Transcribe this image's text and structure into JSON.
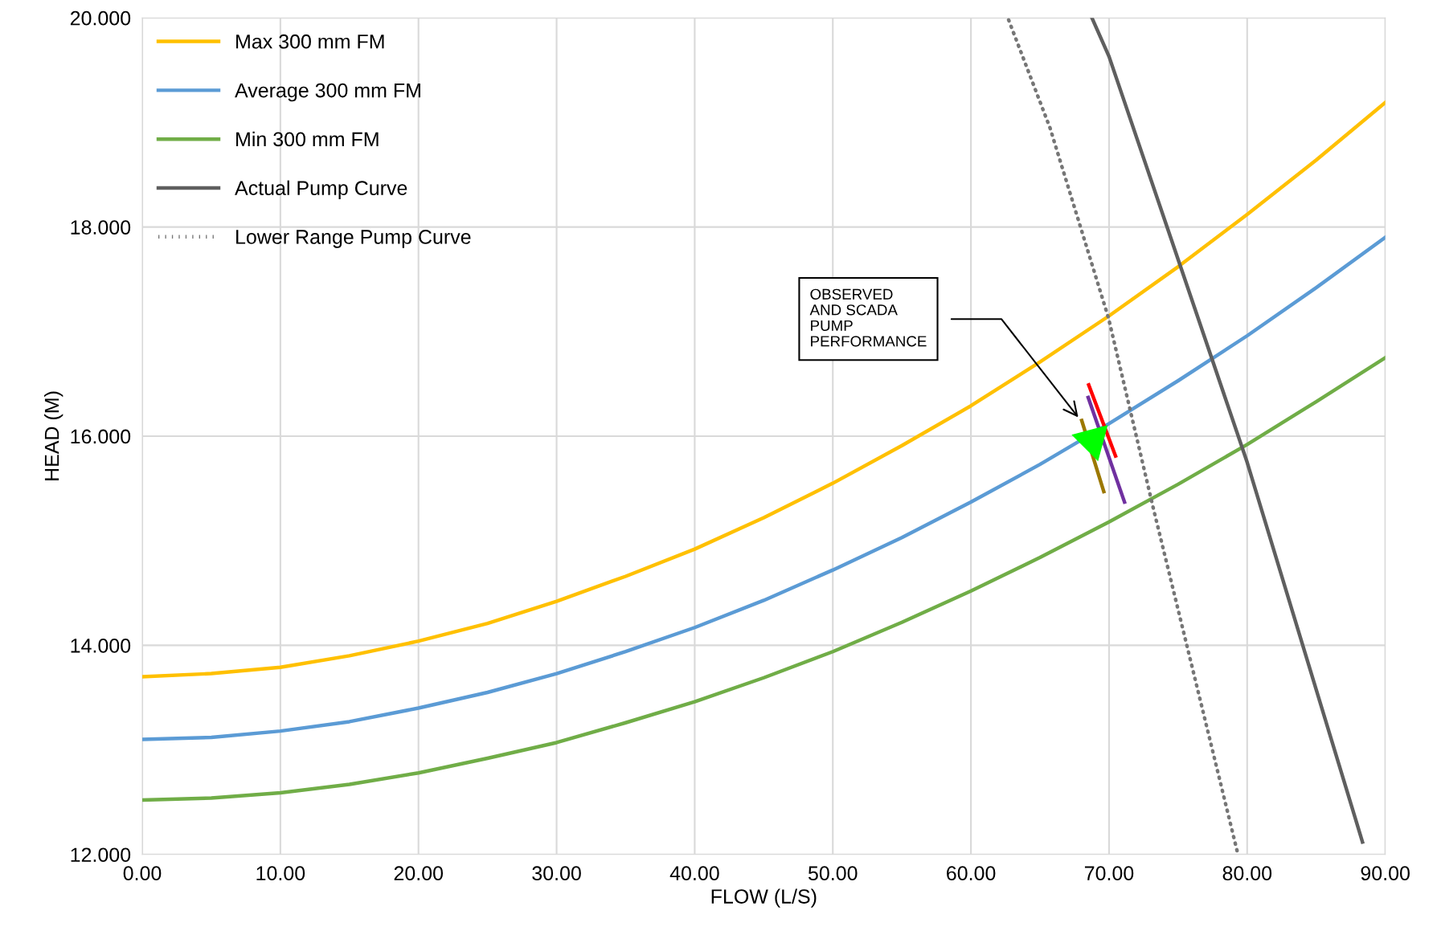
{
  "chart_data": {
    "type": "line",
    "xlabel": "FLOW (L/S)",
    "ylabel": "HEAD (M)",
    "xlim": [
      0,
      90
    ],
    "ylim": [
      12,
      20
    ],
    "xticks": [
      {
        "value": 0,
        "label": "0.00"
      },
      {
        "value": 10,
        "label": "10.00"
      },
      {
        "value": 20,
        "label": "20.00"
      },
      {
        "value": 30,
        "label": "30.00"
      },
      {
        "value": 40,
        "label": "40.00"
      },
      {
        "value": 50,
        "label": "50.00"
      },
      {
        "value": 60,
        "label": "60.00"
      },
      {
        "value": 70,
        "label": "70.00"
      },
      {
        "value": 80,
        "label": "80.00"
      },
      {
        "value": 90,
        "label": "90.00"
      }
    ],
    "yticks": [
      {
        "value": 12,
        "label": "12.000"
      },
      {
        "value": 14,
        "label": "14.000"
      },
      {
        "value": 16,
        "label": "16.000"
      },
      {
        "value": 18,
        "label": "18.000"
      },
      {
        "value": 20,
        "label": "20.000"
      }
    ],
    "grid": true,
    "legend": "top left",
    "series": [
      {
        "name": "Max 300 mm FM",
        "color": "#ffc000",
        "x": [
          0,
          5,
          10,
          15,
          20,
          25,
          30,
          35,
          40,
          45,
          50,
          55,
          60,
          65,
          70,
          75,
          80,
          85,
          90
        ],
        "values": [
          13.7,
          13.73,
          13.79,
          13.9,
          14.04,
          14.21,
          14.42,
          14.66,
          14.92,
          15.22,
          15.55,
          15.91,
          16.29,
          16.71,
          17.15,
          17.62,
          18.12,
          18.64,
          19.19
        ]
      },
      {
        "name": "Average 300 mm FM",
        "color": "#5b9bd5",
        "x": [
          0,
          5,
          10,
          15,
          20,
          25,
          30,
          35,
          40,
          45,
          50,
          55,
          60,
          65,
          70,
          75,
          80,
          85,
          90
        ],
        "values": [
          13.1,
          13.12,
          13.18,
          13.27,
          13.4,
          13.55,
          13.73,
          13.94,
          14.17,
          14.43,
          14.72,
          15.03,
          15.37,
          15.73,
          16.12,
          16.53,
          16.96,
          17.42,
          17.9
        ]
      },
      {
        "name": "Min 300 mm FM",
        "color": "#70ad47",
        "x": [
          0,
          5,
          10,
          15,
          20,
          25,
          30,
          35,
          40,
          45,
          50,
          55,
          60,
          65,
          70,
          75,
          80,
          85,
          90
        ],
        "values": [
          12.52,
          12.54,
          12.59,
          12.67,
          12.78,
          12.92,
          13.07,
          13.26,
          13.46,
          13.69,
          13.94,
          14.22,
          14.52,
          14.84,
          15.18,
          15.54,
          15.92,
          16.33,
          16.75
        ]
      },
      {
        "name": "Actual Pump Curve",
        "color": "#5f5f5f",
        "x": [
          68.76,
          70.0,
          75.18,
          80.0,
          88.35
        ],
        "values": [
          20.0,
          19.63,
          17.62,
          15.75,
          12.12
        ]
      },
      {
        "name": "Lower Range Pump Curve",
        "color": "#767676",
        "line_style": "dotted",
        "x": [
          62.73,
          65.72,
          69.96,
          73.17,
          79.28
        ],
        "values": [
          19.98,
          18.95,
          17.13,
          15.33,
          12.03
        ]
      },
      {
        "color": "#ff0000",
        "x": [
          68.53,
          70.47
        ],
        "values": [
          16.49,
          15.81
        ]
      },
      {
        "color": "#7030a0",
        "x": [
          68.49,
          71.12
        ],
        "values": [
          16.37,
          15.37
        ]
      },
      {
        "color": "#9c7800",
        "x": [
          68.02,
          69.62
        ],
        "values": [
          16.15,
          15.47
        ]
      },
      {
        "type": "scatter",
        "color": "#00ff00",
        "marker": "triangle",
        "x": [
          68.8
        ],
        "values": [
          15.96
        ]
      }
    ],
    "annotations": [
      "OBSERVED\nAND SCADA\nPUMP\nPERFORMANCE"
    ]
  }
}
